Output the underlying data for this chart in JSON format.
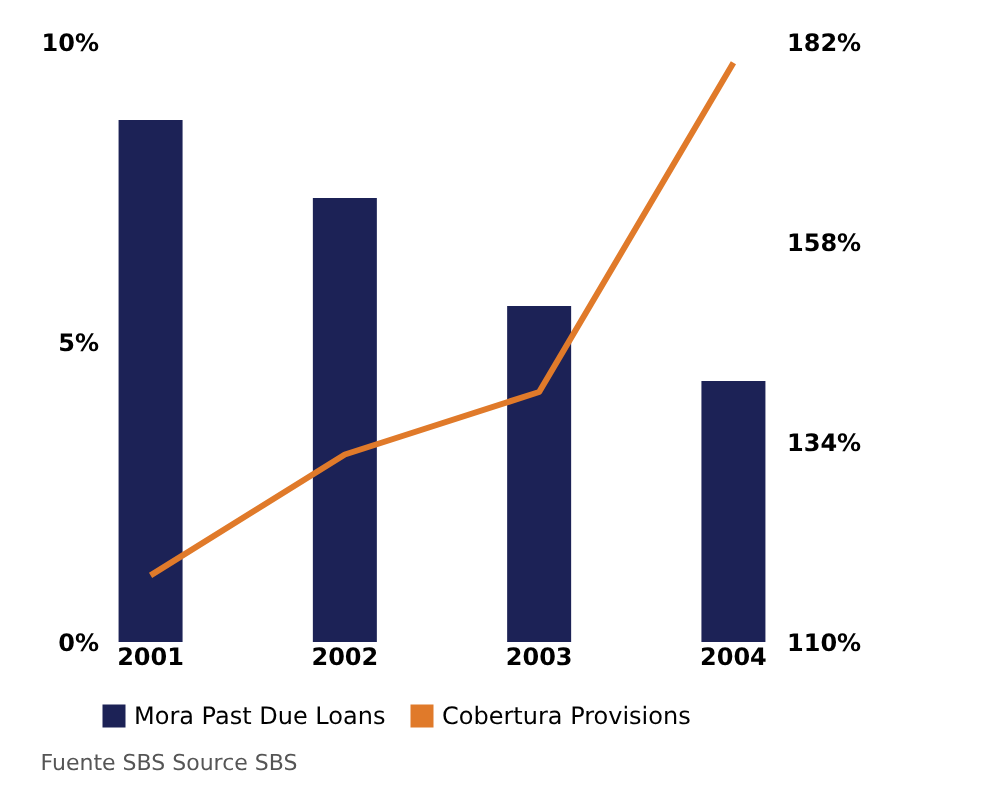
{
  "chart_data": {
    "type": "bar",
    "categories": [
      "2001",
      "2002",
      "2003",
      "2004"
    ],
    "series": [
      {
        "name": "Mora Past Due Loans",
        "color": "#1c2256",
        "values": [
          8.7,
          7.4,
          5.6,
          4.35
        ]
      },
      {
        "name": "Cobertura Provisions",
        "type": "line",
        "axis": "y2",
        "color": "#e07a2a",
        "values": [
          118,
          132.5,
          140,
          179.5
        ]
      }
    ],
    "ylim": [
      0,
      10
    ],
    "yticks": [
      {
        "value": 0,
        "label": "0%"
      },
      {
        "value": 5,
        "label": "5%"
      },
      {
        "value": 10,
        "label": "10%"
      }
    ],
    "y2lim": [
      110,
      182
    ],
    "y2ticks": [
      {
        "value": 110,
        "label": "110%"
      },
      {
        "value": 134,
        "label": "134%"
      },
      {
        "value": 158,
        "label": "158%"
      },
      {
        "value": 182,
        "label": "182%"
      }
    ],
    "legend": "bottom",
    "grid": false,
    "annotations": [
      "Fuente SBS Source SBS"
    ]
  }
}
